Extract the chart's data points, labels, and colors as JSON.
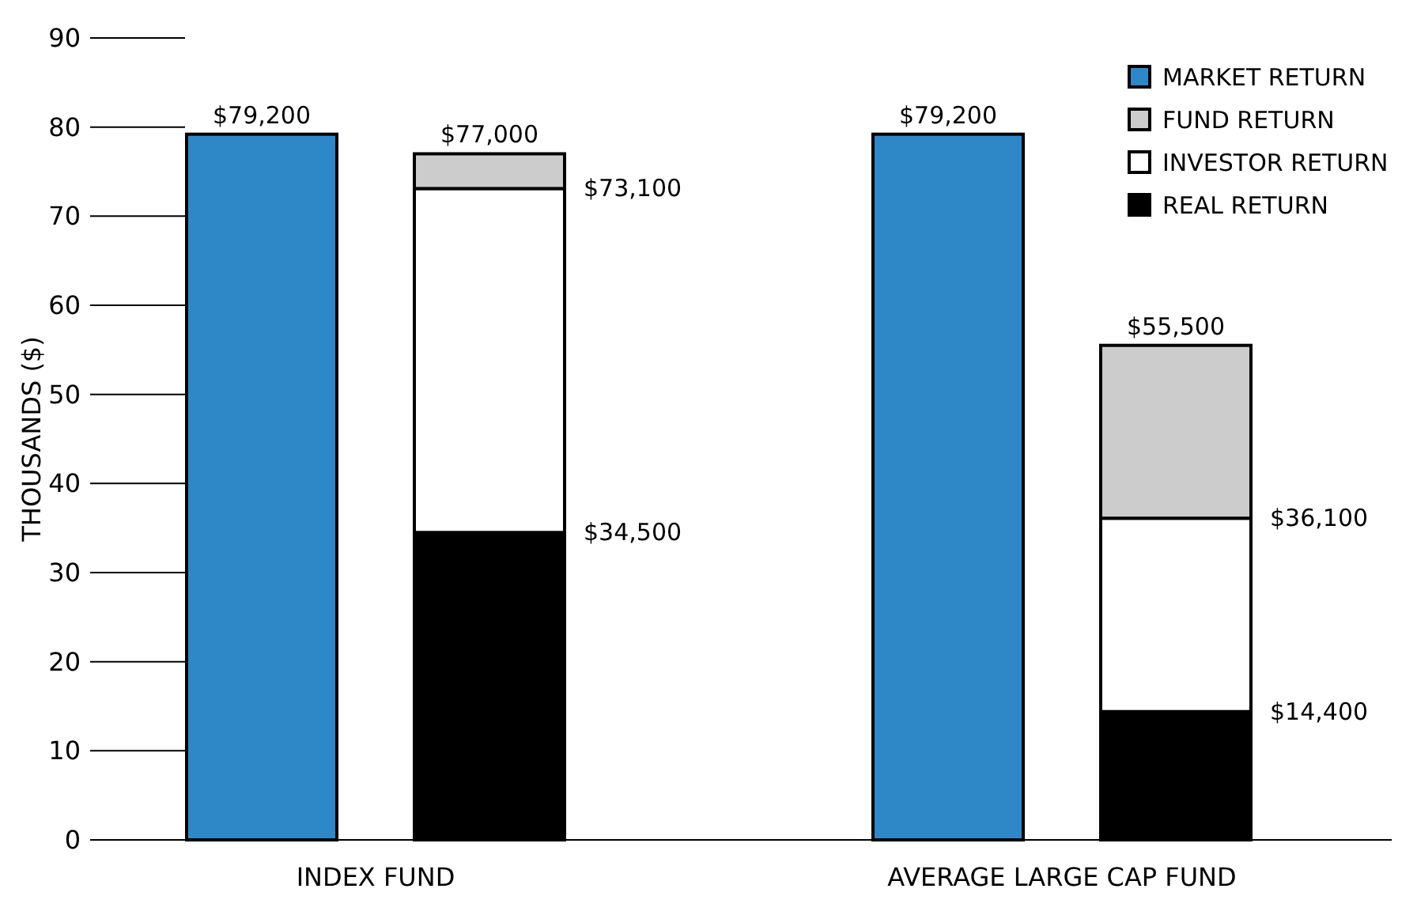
{
  "chart_data": {
    "type": "bar",
    "stacked": true,
    "ylabel": "THOUSANDS ($)",
    "categories": [
      null,
      null,
      null,
      null
    ],
    "series": [
      {
        "name": "MARKET RETURN",
        "color": "#2e88c8",
        "values": [
          79.2,
          null,
          79.2,
          null
        ]
      },
      {
        "name": "REAL RETURN",
        "color": "#000000",
        "values": [
          null,
          34.5,
          null,
          14.4
        ]
      },
      {
        "name": "INVESTOR RETURN",
        "color": "#ffffff",
        "values": [
          null,
          38.6,
          null,
          21.7
        ]
      },
      {
        "name": "FUND RETURN",
        "color": "#cccccc",
        "values": [
          null,
          3.9,
          null,
          19.4
        ]
      }
    ],
    "totals": [
      "$79,200",
      "$77,000",
      "$79,200",
      "$55,500"
    ],
    "annotations": [
      "INDEX FUND",
      "AVERAGE LARGE CAP FUND",
      "$73,100",
      "$34,500",
      "$36,100",
      "$14,400"
    ],
    "ylim": [
      0,
      90
    ],
    "yticks": [
      0,
      10,
      20,
      30,
      40,
      50,
      60,
      70,
      80,
      90
    ],
    "legend": "top right"
  }
}
